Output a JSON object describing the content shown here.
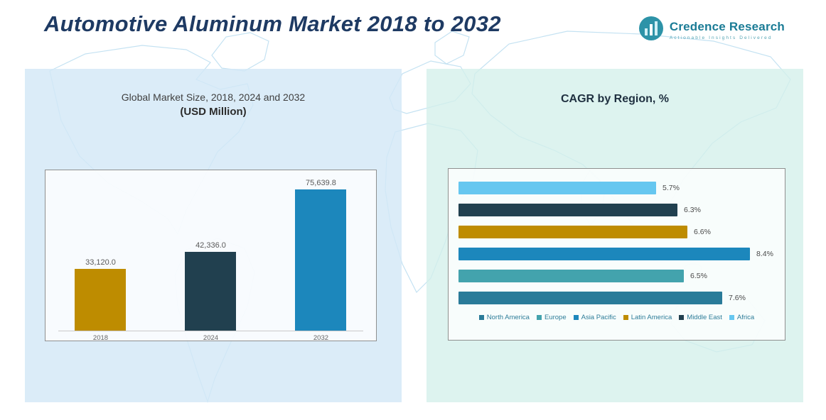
{
  "page": {
    "title": "Automotive Aluminum Market 2018 to 2032"
  },
  "logo": {
    "name": "Credence Research",
    "tagline": "Actionable Insights Delivered"
  },
  "colors": {
    "title_navy": "#1E3A63",
    "gold": "#BE8C00",
    "dark_navy": "#21404F",
    "blue": "#1C87BC",
    "teal": "#43A3AD",
    "steel_teal": "#2A7B99",
    "sky_blue": "#66C7F0",
    "panel_left_bg": "#D3E8F6",
    "panel_right_bg": "#D3EFEA"
  },
  "chart_data": [
    {
      "type": "bar",
      "orientation": "vertical",
      "title": "Global Market Size, 2018, 2024 and 2032",
      "subtitle": "(USD Million)",
      "categories": [
        "2018",
        "2024",
        "2032"
      ],
      "values": [
        33120.0,
        42336.0,
        75639.8
      ],
      "value_labels": [
        "33,120.0",
        "42,336.0",
        "75,639.8"
      ],
      "bar_colors": [
        "#BE8C00",
        "#21404F",
        "#1C87BC"
      ],
      "ylim": [
        0,
        80000
      ],
      "grid": false
    },
    {
      "type": "bar",
      "orientation": "horizontal",
      "title": "CAGR by Region, %",
      "categories": [
        "Africa",
        "Middle East",
        "Latin America",
        "Asia Pacific",
        "Europe",
        "North America"
      ],
      "values": [
        5.7,
        6.3,
        6.6,
        8.4,
        6.5,
        7.6
      ],
      "value_labels": [
        "5.7%",
        "6.3%",
        "6.6%",
        "8.4%",
        "6.5%",
        "7.6%"
      ],
      "bar_colors": [
        "#66C7F0",
        "#21404F",
        "#BE8C00",
        "#1C87BC",
        "#43A3AD",
        "#2A7B99"
      ],
      "xlim": [
        0,
        8.7
      ],
      "legend_position": "bottom",
      "legend": [
        {
          "label": "North America",
          "color": "#2A7B99"
        },
        {
          "label": "Europe",
          "color": "#43A3AD"
        },
        {
          "label": "Asia Pacific",
          "color": "#1C87BC"
        },
        {
          "label": "Latin America",
          "color": "#BE8C00"
        },
        {
          "label": "Middle East",
          "color": "#21404F"
        },
        {
          "label": "Africa",
          "color": "#66C7F0"
        }
      ]
    }
  ]
}
